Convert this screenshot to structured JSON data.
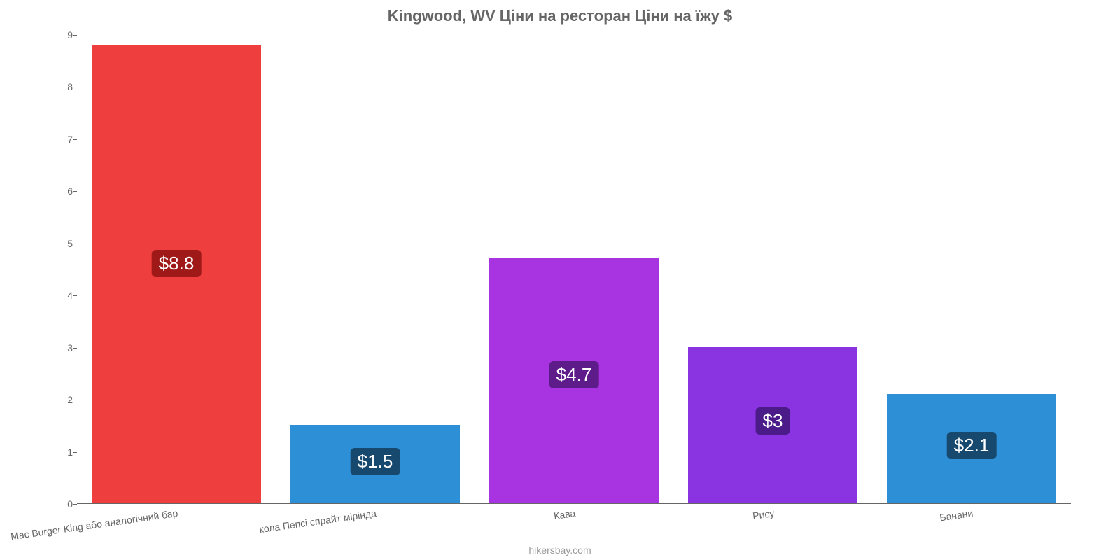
{
  "chart": {
    "type": "bar",
    "title": "Kingwood, WV Ціни на ресторан Ціни на їжу $",
    "title_fontsize": 22,
    "title_color": "#666666",
    "background_color": "#ffffff",
    "axis_color": "#666666",
    "tick_color": "#666666",
    "tick_fontsize": 14,
    "ylim_min": 0,
    "ylim_max": 9,
    "yticks": [
      0,
      1,
      2,
      3,
      4,
      5,
      6,
      7,
      8,
      9
    ],
    "bar_width_ratio": 0.85,
    "value_badge_fontsize": 26,
    "credit": "hikersbay.com",
    "credit_color": "#999999",
    "categories": [
      {
        "label": "Mac Burger King або аналогічний бар",
        "value": 8.8,
        "display": "$8.8",
        "color": "#ee3e3e",
        "badge_bg": "#a01919"
      },
      {
        "label": "кола Пепсі спрайт мірінда",
        "value": 1.5,
        "display": "$1.5",
        "color": "#2d8fd6",
        "badge_bg": "#17496f"
      },
      {
        "label": "Кава",
        "value": 4.7,
        "display": "$4.7",
        "color": "#a833e0",
        "badge_bg": "#5e1b8a"
      },
      {
        "label": "Рису",
        "value": 3.0,
        "display": "$3",
        "color": "#8a33e0",
        "badge_bg": "#4c1b8a"
      },
      {
        "label": "Банани",
        "value": 2.1,
        "display": "$2.1",
        "color": "#2d8fd6",
        "badge_bg": "#17496f"
      }
    ]
  }
}
